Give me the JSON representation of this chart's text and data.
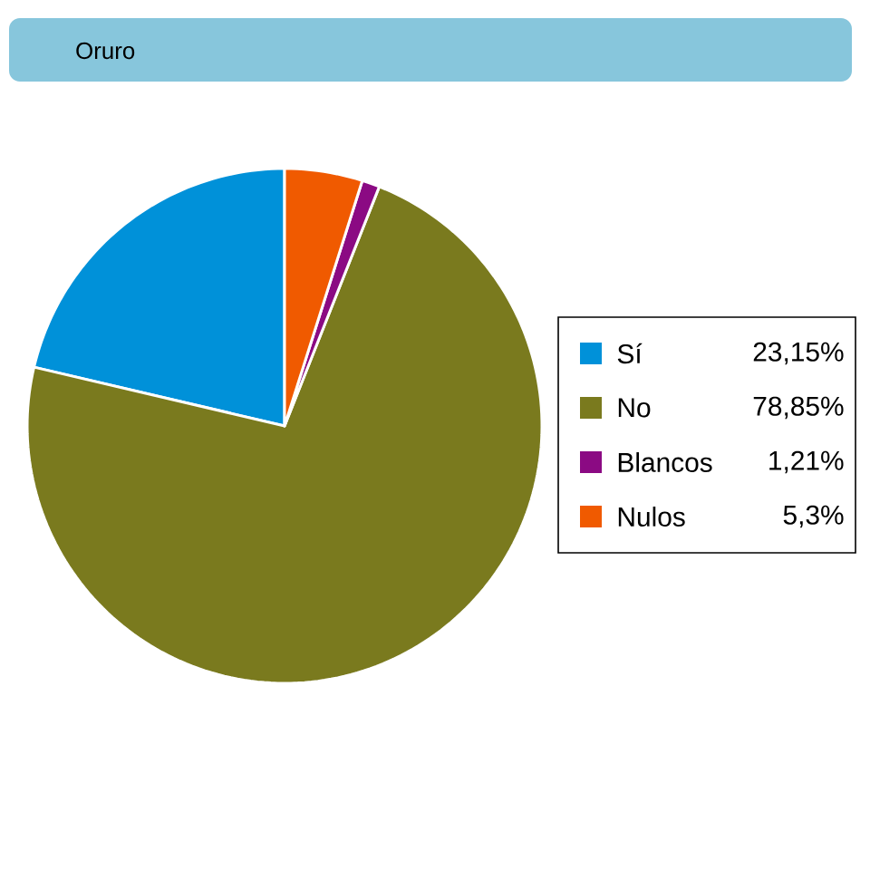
{
  "chart_data": {
    "type": "pie",
    "title": "Oruro",
    "categories": [
      "Sí",
      "No",
      "Blancos",
      "Nulos"
    ],
    "values": [
      23.15,
      78.85,
      1.21,
      5.3
    ],
    "value_labels": [
      "23,15%",
      "78,85%",
      "1,21%",
      "5,3%"
    ],
    "colors": [
      "#0091d9",
      "#7a7a1e",
      "#8b0a83",
      "#f05a00"
    ],
    "legend": "right"
  }
}
